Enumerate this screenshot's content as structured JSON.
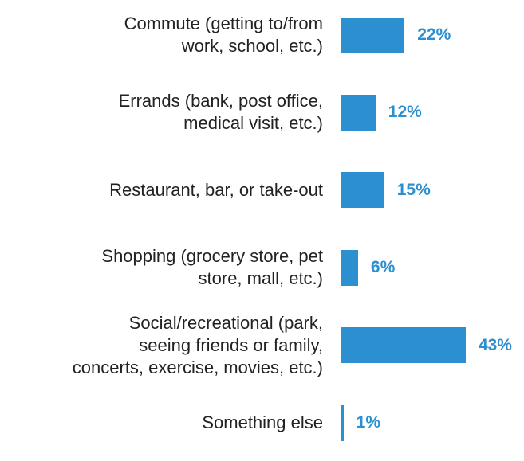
{
  "chart_data": {
    "type": "bar",
    "orientation": "horizontal",
    "categories": [
      "Commute (getting to/from\nwork, school, etc.)",
      "Errands (bank, post office,\nmedical visit, etc.)",
      "Restaurant, bar, or take-out",
      "Shopping (grocery store, pet\nstore, mall, etc.)",
      "Social/recreational (park,\nseeing friends or family,\nconcerts, exercise, movies, etc.)",
      "Something else"
    ],
    "values": [
      22,
      12,
      15,
      6,
      43,
      1
    ],
    "value_labels": [
      "22%",
      "12%",
      "15%",
      "6%",
      "43%",
      "1%"
    ],
    "color": "#2b8fd0"
  }
}
